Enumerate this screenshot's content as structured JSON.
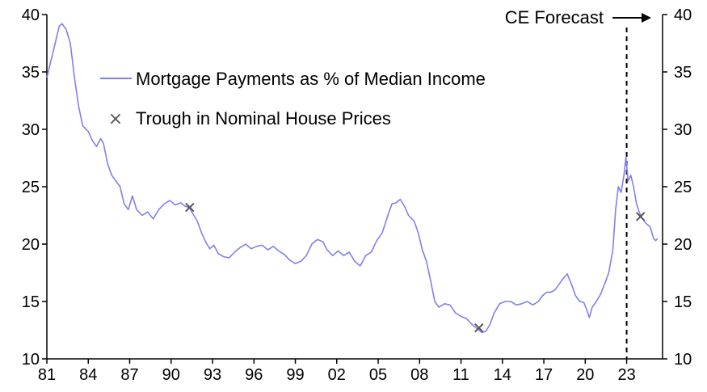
{
  "chart_data": {
    "type": "line",
    "x_start_year": 1981,
    "x_end_year": 2025.6,
    "ylim": [
      10,
      40
    ],
    "yticks": [
      "10",
      "15",
      "20",
      "25",
      "30",
      "35",
      "40"
    ],
    "xticks": [
      {
        "year": 1981,
        "label": "81"
      },
      {
        "year": 1984,
        "label": "84"
      },
      {
        "year": 1987,
        "label": "87"
      },
      {
        "year": 1990,
        "label": "90"
      },
      {
        "year": 1993,
        "label": "93"
      },
      {
        "year": 1996,
        "label": "96"
      },
      {
        "year": 1999,
        "label": "99"
      },
      {
        "year": 2002,
        "label": "02"
      },
      {
        "year": 2005,
        "label": "05"
      },
      {
        "year": 2008,
        "label": "08"
      },
      {
        "year": 2011,
        "label": "11"
      },
      {
        "year": 2014,
        "label": "14"
      },
      {
        "year": 2017,
        "label": "17"
      },
      {
        "year": 2020,
        "label": "20"
      },
      {
        "year": 2023,
        "label": "23"
      }
    ],
    "series": [
      {
        "name": "Mortgage Payments as % of Median Income",
        "color": "#8080ee",
        "points": [
          [
            1981.0,
            34.5
          ],
          [
            1981.3,
            36.0
          ],
          [
            1981.6,
            37.5
          ],
          [
            1981.9,
            39.0
          ],
          [
            1982.1,
            39.2
          ],
          [
            1982.4,
            38.7
          ],
          [
            1982.7,
            37.5
          ],
          [
            1983.0,
            34.5
          ],
          [
            1983.3,
            32.0
          ],
          [
            1983.6,
            30.3
          ],
          [
            1984.0,
            29.8
          ],
          [
            1984.3,
            29.0
          ],
          [
            1984.6,
            28.5
          ],
          [
            1984.9,
            29.2
          ],
          [
            1985.1,
            28.8
          ],
          [
            1985.4,
            27.0
          ],
          [
            1985.7,
            26.0
          ],
          [
            1986.0,
            25.5
          ],
          [
            1986.3,
            25.0
          ],
          [
            1986.6,
            23.5
          ],
          [
            1986.9,
            23.0
          ],
          [
            1987.2,
            24.2
          ],
          [
            1987.5,
            23.0
          ],
          [
            1987.9,
            22.5
          ],
          [
            1988.3,
            22.8
          ],
          [
            1988.7,
            22.2
          ],
          [
            1989.1,
            23.0
          ],
          [
            1989.5,
            23.5
          ],
          [
            1989.9,
            23.8
          ],
          [
            1990.3,
            23.4
          ],
          [
            1990.7,
            23.6
          ],
          [
            1991.0,
            23.3
          ],
          [
            1991.3,
            23.2
          ],
          [
            1991.6,
            22.6
          ],
          [
            1991.9,
            22.0
          ],
          [
            1992.2,
            21.0
          ],
          [
            1992.5,
            20.2
          ],
          [
            1992.8,
            19.6
          ],
          [
            1993.1,
            19.9
          ],
          [
            1993.4,
            19.2
          ],
          [
            1993.8,
            18.9
          ],
          [
            1994.2,
            18.8
          ],
          [
            1994.6,
            19.3
          ],
          [
            1995.0,
            19.7
          ],
          [
            1995.4,
            20.0
          ],
          [
            1995.8,
            19.6
          ],
          [
            1996.2,
            19.8
          ],
          [
            1996.6,
            19.9
          ],
          [
            1997.0,
            19.5
          ],
          [
            1997.4,
            19.8
          ],
          [
            1997.8,
            19.4
          ],
          [
            1998.2,
            19.1
          ],
          [
            1998.6,
            18.6
          ],
          [
            1999.0,
            18.3
          ],
          [
            1999.4,
            18.5
          ],
          [
            1999.8,
            19.0
          ],
          [
            2000.2,
            20.0
          ],
          [
            2000.6,
            20.4
          ],
          [
            2001.0,
            20.2
          ],
          [
            2001.3,
            19.5
          ],
          [
            2001.7,
            19.0
          ],
          [
            2002.1,
            19.4
          ],
          [
            2002.5,
            19.0
          ],
          [
            2002.9,
            19.3
          ],
          [
            2003.3,
            18.5
          ],
          [
            2003.7,
            18.1
          ],
          [
            2004.1,
            19.0
          ],
          [
            2004.5,
            19.3
          ],
          [
            2004.9,
            20.3
          ],
          [
            2005.3,
            21.0
          ],
          [
            2005.7,
            22.5
          ],
          [
            2006.0,
            23.5
          ],
          [
            2006.3,
            23.6
          ],
          [
            2006.6,
            23.9
          ],
          [
            2006.9,
            23.3
          ],
          [
            2007.2,
            22.5
          ],
          [
            2007.6,
            22.0
          ],
          [
            2007.9,
            21.0
          ],
          [
            2008.2,
            19.5
          ],
          [
            2008.5,
            18.5
          ],
          [
            2008.8,
            16.8
          ],
          [
            2009.1,
            15.0
          ],
          [
            2009.4,
            14.5
          ],
          [
            2009.8,
            14.8
          ],
          [
            2010.2,
            14.7
          ],
          [
            2010.6,
            14.0
          ],
          [
            2011.0,
            13.7
          ],
          [
            2011.4,
            13.5
          ],
          [
            2011.8,
            13.0
          ],
          [
            2012.2,
            12.6
          ],
          [
            2012.5,
            12.3
          ],
          [
            2012.8,
            12.4
          ],
          [
            2013.1,
            13.0
          ],
          [
            2013.4,
            14.0
          ],
          [
            2013.8,
            14.8
          ],
          [
            2014.2,
            15.0
          ],
          [
            2014.6,
            15.0
          ],
          [
            2015.0,
            14.7
          ],
          [
            2015.4,
            14.8
          ],
          [
            2015.8,
            15.0
          ],
          [
            2016.2,
            14.7
          ],
          [
            2016.6,
            15.0
          ],
          [
            2016.9,
            15.5
          ],
          [
            2017.2,
            15.8
          ],
          [
            2017.5,
            15.8
          ],
          [
            2017.8,
            16.0
          ],
          [
            2018.1,
            16.5
          ],
          [
            2018.4,
            17.0
          ],
          [
            2018.7,
            17.4
          ],
          [
            2019.0,
            16.5
          ],
          [
            2019.3,
            15.5
          ],
          [
            2019.6,
            15.0
          ],
          [
            2019.9,
            14.9
          ],
          [
            2020.1,
            14.3
          ],
          [
            2020.3,
            13.6
          ],
          [
            2020.5,
            14.5
          ],
          [
            2020.8,
            15.0
          ],
          [
            2021.1,
            15.6
          ],
          [
            2021.4,
            16.5
          ],
          [
            2021.7,
            17.5
          ],
          [
            2022.0,
            19.5
          ],
          [
            2022.2,
            23.0
          ],
          [
            2022.4,
            25.0
          ],
          [
            2022.6,
            24.5
          ],
          [
            2022.8,
            26.0
          ],
          [
            2022.95,
            27.6
          ],
          [
            2023.1,
            25.5
          ],
          [
            2023.3,
            26.0
          ],
          [
            2023.5,
            25.0
          ],
          [
            2023.7,
            23.6
          ],
          [
            2023.9,
            22.8
          ],
          [
            2024.1,
            22.3
          ],
          [
            2024.4,
            21.8
          ],
          [
            2024.7,
            21.5
          ],
          [
            2024.95,
            20.5
          ],
          [
            2025.1,
            20.3
          ],
          [
            2025.25,
            20.5
          ]
        ]
      }
    ],
    "markers": {
      "name": "Trough in Nominal House Prices",
      "symbol": "×",
      "color": "#555555",
      "points": [
        [
          1991.35,
          23.2
        ],
        [
          2012.3,
          12.7
        ],
        [
          2024.0,
          22.4
        ]
      ]
    },
    "forecast": {
      "year": 2023.0,
      "label": "CE Forecast"
    }
  }
}
